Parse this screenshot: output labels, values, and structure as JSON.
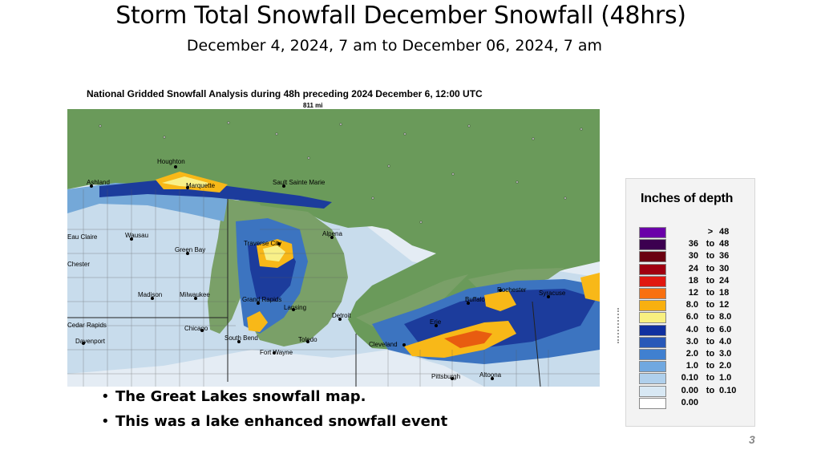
{
  "slide": {
    "title": "Storm Total Snowfall December Snowfall (48hrs)",
    "subtitle": "December 4, 2024, 7 am to December 06, 2024,  7 am",
    "page_number": "3"
  },
  "map": {
    "title": "National Gridded Snowfall Analysis during 48h preceding 2024 December 6, 12:00 UTC",
    "scale_label": "811 mi",
    "cities": [
      "Houghton",
      "Marquette",
      "Ashland",
      "Sault Sainte Marie",
      "Alpena",
      "Eau Claire",
      "Wausau",
      "Green Bay",
      "Traverse City",
      "Chester",
      "Madison",
      "Milwaukee",
      "Grand Rapids",
      "Lansing",
      "Detroit",
      "Cedar Rapids",
      "Chicago",
      "Davenport",
      "South Bend",
      "Fort Wayne",
      "Toledo",
      "Cleveland",
      "Erie",
      "Buffalo",
      "Rochester",
      "Syracuse",
      "Pittsburgh",
      "Altoona"
    ],
    "colors": {
      "land_canada": "#6a9a5a",
      "lake": "#7c9e6a",
      "no_snow": "#e4ecf4",
      "light": "#c8dcec",
      "blue_light": "#74a8d8",
      "blue_mid": "#3c74c0",
      "blue_dark": "#1c3c9c",
      "yellow": "#f8f088",
      "orange": "#f8b818",
      "red_orange": "#e85c10"
    }
  },
  "bullets": [
    "The Great Lakes snowfall map.",
    "This was a lake enhanced snowfall event"
  ],
  "legend": {
    "title": "Inches of depth",
    "rows": [
      {
        "lo": "",
        "to": ">",
        "hi": "48",
        "color": "#6a00a8"
      },
      {
        "lo": "36",
        "to": "to",
        "hi": "48",
        "color": "#3c0050"
      },
      {
        "lo": "30",
        "to": "to",
        "hi": "36",
        "color": "#6a0010"
      },
      {
        "lo": "24",
        "to": "to",
        "hi": "30",
        "color": "#a00010"
      },
      {
        "lo": "18",
        "to": "to",
        "hi": "24",
        "color": "#e01810"
      },
      {
        "lo": "12",
        "to": "to",
        "hi": "18",
        "color": "#f87010"
      },
      {
        "lo": "8.0",
        "to": "to",
        "hi": "12",
        "color": "#f8b010"
      },
      {
        "lo": "6.0",
        "to": "to",
        "hi": "8.0",
        "color": "#f8f080"
      },
      {
        "lo": "4.0",
        "to": "to",
        "hi": "6.0",
        "color": "#1030a0"
      },
      {
        "lo": "3.0",
        "to": "to",
        "hi": "4.0",
        "color": "#2858b8"
      },
      {
        "lo": "2.0",
        "to": "to",
        "hi": "3.0",
        "color": "#4080d0"
      },
      {
        "lo": "1.0",
        "to": "to",
        "hi": "2.0",
        "color": "#70a8e0"
      },
      {
        "lo": "0.10",
        "to": "to",
        "hi": "1.0",
        "color": "#b0d0ec"
      },
      {
        "lo": "0.00",
        "to": "to",
        "hi": "0.10",
        "color": "#d8e8f4"
      },
      {
        "lo": "0.00",
        "to": "",
        "hi": "",
        "color": "#ffffff"
      }
    ]
  }
}
